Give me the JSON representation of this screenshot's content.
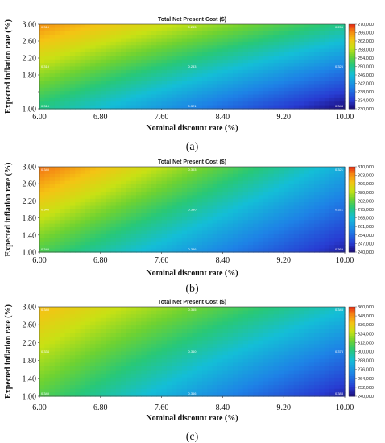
{
  "chart_data": [
    {
      "type": "heatmap",
      "panel_label": "(a)",
      "title": "Total Net Present Cost ($)",
      "xlabel": "Nominal discount rate (%)",
      "ylabel": "Expected inflation rate (%)",
      "xlim": [
        6.0,
        10.0
      ],
      "ylim": [
        1.0,
        3.0
      ],
      "x_ticks": [
        "6.00",
        "6.80",
        "7.60",
        "8.40",
        "9.20",
        "10.00"
      ],
      "y_ticks": [
        "1.00",
        "1.40",
        "1.80",
        "2.20",
        "2.60",
        "3.00"
      ],
      "y_tick_labels": [
        "1.00",
        "",
        "1.80",
        "2.20",
        "2.60",
        "3.00"
      ],
      "colorbar": {
        "min": 230000,
        "max": 270000,
        "ticks": [
          "230,000",
          "234,000",
          "238,000",
          "242,000",
          "246,000",
          "250,000",
          "254,000",
          "258,000",
          "262,000",
          "266,000",
          "270,000"
        ]
      },
      "corner_values": {
        "top_left": 266000,
        "top_right": 250000,
        "bottom_left": 250000,
        "bottom_right": 230000
      },
      "point_labels": [
        {
          "x": 6.0,
          "y": 3.0,
          "text": "0.310"
        },
        {
          "x": 8.0,
          "y": 3.0,
          "text": "0.283"
        },
        {
          "x": 10.0,
          "y": 3.0,
          "text": "0.256"
        },
        {
          "x": 6.0,
          "y": 2.0,
          "text": "0.310"
        },
        {
          "x": 8.0,
          "y": 2.0,
          "text": "0.283"
        },
        {
          "x": 10.0,
          "y": 2.0,
          "text": "0.326"
        },
        {
          "x": 6.0,
          "y": 1.0,
          "text": "0.310"
        },
        {
          "x": 8.0,
          "y": 1.0,
          "text": "0.321"
        },
        {
          "x": 10.0,
          "y": 1.0,
          "text": "0.344"
        }
      ]
    },
    {
      "type": "heatmap",
      "panel_label": "(b)",
      "title": "Total Net Present Cost ($)",
      "xlabel": "Nominal discount rate (%)",
      "ylabel": "Expected inflation rate (%)",
      "xlim": [
        6.0,
        10.0
      ],
      "ylim": [
        1.0,
        3.0
      ],
      "x_ticks": [
        "6.00",
        "6.80",
        "7.60",
        "8.40",
        "9.20",
        "10.00"
      ],
      "y_ticks": [
        "1.00",
        "1.40",
        "1.80",
        "2.20",
        "2.60",
        "3.00"
      ],
      "y_tick_labels": [
        "1.00",
        "1.40",
        "1.80",
        "2.20",
        "2.60",
        "3.00"
      ],
      "colorbar": {
        "min": 240000,
        "max": 310000,
        "ticks": [
          "240,000",
          "247,000",
          "254,000",
          "261,000",
          "268,000",
          "275,000",
          "282,000",
          "289,000",
          "296,000",
          "303,000",
          "310,000"
        ]
      },
      "corner_values": {
        "top_left": 306000,
        "top_right": 265000,
        "bottom_left": 280000,
        "bottom_right": 243000
      },
      "point_labels": [
        {
          "x": 6.0,
          "y": 3.0,
          "text": "0.340"
        },
        {
          "x": 8.0,
          "y": 3.0,
          "text": "0.303"
        },
        {
          "x": 10.0,
          "y": 3.0,
          "text": "0.321"
        },
        {
          "x": 6.0,
          "y": 2.0,
          "text": "0.340"
        },
        {
          "x": 8.0,
          "y": 2.0,
          "text": "0.330"
        },
        {
          "x": 10.0,
          "y": 2.0,
          "text": "0.321"
        },
        {
          "x": 6.0,
          "y": 1.0,
          "text": "0.340"
        },
        {
          "x": 8.0,
          "y": 1.0,
          "text": "0.346"
        },
        {
          "x": 10.0,
          "y": 1.0,
          "text": "0.369"
        }
      ]
    },
    {
      "type": "heatmap",
      "panel_label": "(c)",
      "title": "Total Net Present Cost ($)",
      "xlabel": "Nominal discount rate (%)",
      "ylabel": "Expected inflation rate (%)",
      "xlim": [
        6.0,
        10.0
      ],
      "ylim": [
        1.0,
        3.0
      ],
      "x_ticks": [
        "6.00",
        "6.80",
        "7.60",
        "8.40",
        "9.20",
        "10.00"
      ],
      "y_ticks": [
        "1.00",
        "1.40",
        "1.80",
        "2.20",
        "2.60",
        "3.00"
      ],
      "y_tick_labels": [
        "1.00",
        "1.40",
        "1.80",
        "2.20",
        "2.60",
        "3.00"
      ],
      "colorbar": {
        "min": 240000,
        "max": 360000,
        "ticks": [
          "240,000",
          "252,000",
          "264,000",
          "276,000",
          "288,000",
          "300,000",
          "312,000",
          "324,000",
          "336,000",
          "348,000",
          "360,000"
        ]
      },
      "corner_values": {
        "top_left": 340000,
        "top_right": 290000,
        "bottom_left": 310000,
        "bottom_right": 246000
      },
      "point_labels": [
        {
          "x": 6.0,
          "y": 3.0,
          "text": "0.340"
        },
        {
          "x": 8.0,
          "y": 3.0,
          "text": "0.365"
        },
        {
          "x": 10.0,
          "y": 3.0,
          "text": "0.346"
        },
        {
          "x": 6.0,
          "y": 2.0,
          "text": "0.334"
        },
        {
          "x": 8.0,
          "y": 2.0,
          "text": "0.360"
        },
        {
          "x": 10.0,
          "y": 2.0,
          "text": "0.376"
        },
        {
          "x": 6.0,
          "y": 1.0,
          "text": "0.340"
        },
        {
          "x": 8.0,
          "y": 1.0,
          "text": "0.366"
        },
        {
          "x": 10.0,
          "y": 1.0,
          "text": "0.388"
        }
      ]
    }
  ]
}
